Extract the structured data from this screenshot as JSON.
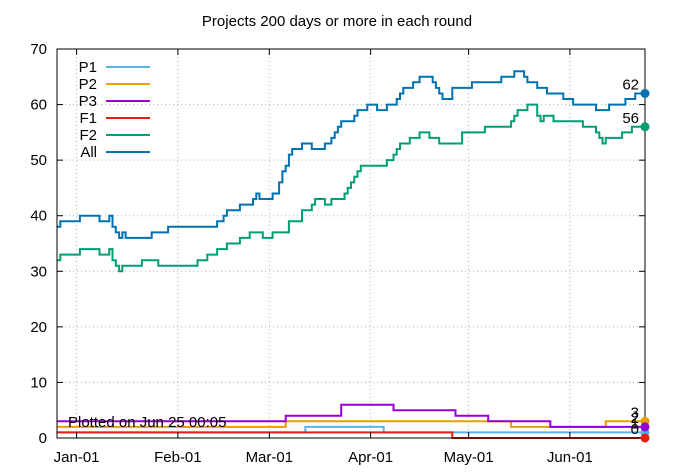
{
  "chart_data": {
    "type": "line",
    "title": "Projects 200 days or more in each round",
    "xlabel": "",
    "ylabel": "",
    "ylim": [
      0,
      70
    ],
    "yticks": [
      0,
      10,
      20,
      30,
      40,
      50,
      60,
      70
    ],
    "x_start": "2020-12-26",
    "x_end": "2021-06-24",
    "xticks": [
      {
        "date": "2021-01-01",
        "label": "Jan-01"
      },
      {
        "date": "2021-02-01",
        "label": "Feb-01"
      },
      {
        "date": "2021-03-01",
        "label": "Mar-01"
      },
      {
        "date": "2021-04-01",
        "label": "Apr-01"
      },
      {
        "date": "2021-05-01",
        "label": "May-01"
      },
      {
        "date": "2021-06-01",
        "label": "Jun-01"
      }
    ],
    "grid": true,
    "legend_position": "top-left",
    "note": "Plotted on Jun 25 00:05",
    "series": [
      {
        "name": "P1",
        "color": "#56b4e9",
        "end_label": "1",
        "points": [
          [
            "2020-12-26",
            1
          ],
          [
            "2021-03-11",
            1
          ],
          [
            "2021-03-12",
            2
          ],
          [
            "2021-04-05",
            1
          ],
          [
            "2021-06-24",
            1
          ]
        ]
      },
      {
        "name": "P2",
        "color": "#e69f00",
        "end_label": "3",
        "points": [
          [
            "2020-12-26",
            2
          ],
          [
            "2021-03-01",
            2
          ],
          [
            "2021-03-06",
            3
          ],
          [
            "2021-05-13",
            3
          ],
          [
            "2021-05-14",
            2
          ],
          [
            "2021-06-11",
            2
          ],
          [
            "2021-06-12",
            3
          ],
          [
            "2021-06-24",
            3
          ]
        ]
      },
      {
        "name": "P3",
        "color": "#9400d3",
        "end_label": "2",
        "points": [
          [
            "2020-12-26",
            3
          ],
          [
            "2021-03-05",
            3
          ],
          [
            "2021-03-06",
            4
          ],
          [
            "2021-03-22",
            4
          ],
          [
            "2021-03-23",
            6
          ],
          [
            "2021-04-07",
            6
          ],
          [
            "2021-04-08",
            5
          ],
          [
            "2021-04-26",
            5
          ],
          [
            "2021-04-27",
            4
          ],
          [
            "2021-05-06",
            4
          ],
          [
            "2021-05-07",
            3
          ],
          [
            "2021-05-25",
            3
          ],
          [
            "2021-05-26",
            2
          ],
          [
            "2021-06-24",
            2
          ]
        ]
      },
      {
        "name": "F1",
        "color": "#e51e10",
        "end_label": "0",
        "points": [
          [
            "2020-12-26",
            1
          ],
          [
            "2021-04-25",
            1
          ],
          [
            "2021-04-26",
            0
          ],
          [
            "2021-06-24",
            0
          ]
        ]
      },
      {
        "name": "F2",
        "color": "#009e73",
        "end_label": "56",
        "points": [
          [
            "2020-12-26",
            32
          ],
          [
            "2020-12-27",
            33
          ],
          [
            "2021-01-01",
            33
          ],
          [
            "2021-01-02",
            34
          ],
          [
            "2021-01-07",
            34
          ],
          [
            "2021-01-08",
            33
          ],
          [
            "2021-01-10",
            33
          ],
          [
            "2021-01-11",
            34
          ],
          [
            "2021-01-12",
            32
          ],
          [
            "2021-01-13",
            31
          ],
          [
            "2021-01-14",
            30
          ],
          [
            "2021-01-15",
            31
          ],
          [
            "2021-01-20",
            31
          ],
          [
            "2021-01-21",
            32
          ],
          [
            "2021-01-25",
            32
          ],
          [
            "2021-01-26",
            31
          ],
          [
            "2021-02-06",
            31
          ],
          [
            "2021-02-07",
            32
          ],
          [
            "2021-02-09",
            32
          ],
          [
            "2021-02-10",
            33
          ],
          [
            "2021-02-12",
            33
          ],
          [
            "2021-02-13",
            34
          ],
          [
            "2021-02-15",
            34
          ],
          [
            "2021-02-16",
            35
          ],
          [
            "2021-02-19",
            35
          ],
          [
            "2021-02-20",
            36
          ],
          [
            "2021-02-22",
            36
          ],
          [
            "2021-02-23",
            37
          ],
          [
            "2021-02-26",
            37
          ],
          [
            "2021-02-27",
            36
          ],
          [
            "2021-03-01",
            36
          ],
          [
            "2021-03-02",
            37
          ],
          [
            "2021-03-06",
            37
          ],
          [
            "2021-03-07",
            39
          ],
          [
            "2021-03-10",
            39
          ],
          [
            "2021-03-11",
            41
          ],
          [
            "2021-03-13",
            41
          ],
          [
            "2021-03-14",
            42
          ],
          [
            "2021-03-15",
            43
          ],
          [
            "2021-03-17",
            43
          ],
          [
            "2021-03-18",
            42
          ],
          [
            "2021-03-19",
            42
          ],
          [
            "2021-03-20",
            43
          ],
          [
            "2021-03-23",
            43
          ],
          [
            "2021-03-24",
            44
          ],
          [
            "2021-03-25",
            45
          ],
          [
            "2021-03-26",
            46
          ],
          [
            "2021-03-27",
            47
          ],
          [
            "2021-03-28",
            48
          ],
          [
            "2021-03-29",
            49
          ],
          [
            "2021-04-05",
            49
          ],
          [
            "2021-04-06",
            50
          ],
          [
            "2021-04-07",
            50
          ],
          [
            "2021-04-08",
            51
          ],
          [
            "2021-04-09",
            52
          ],
          [
            "2021-04-10",
            53
          ],
          [
            "2021-04-12",
            53
          ],
          [
            "2021-04-13",
            54
          ],
          [
            "2021-04-14",
            54
          ],
          [
            "2021-04-15",
            54
          ],
          [
            "2021-04-16",
            55
          ],
          [
            "2021-04-18",
            55
          ],
          [
            "2021-04-19",
            54
          ],
          [
            "2021-04-21",
            54
          ],
          [
            "2021-04-22",
            53
          ],
          [
            "2021-04-28",
            53
          ],
          [
            "2021-04-29",
            55
          ],
          [
            "2021-05-05",
            55
          ],
          [
            "2021-05-06",
            56
          ],
          [
            "2021-05-13",
            56
          ],
          [
            "2021-05-14",
            57
          ],
          [
            "2021-05-15",
            58
          ],
          [
            "2021-05-16",
            59
          ],
          [
            "2021-05-18",
            59
          ],
          [
            "2021-05-19",
            60
          ],
          [
            "2021-05-21",
            60
          ],
          [
            "2021-05-22",
            58
          ],
          [
            "2021-05-23",
            57
          ],
          [
            "2021-05-24",
            58
          ],
          [
            "2021-05-26",
            58
          ],
          [
            "2021-05-27",
            57
          ],
          [
            "2021-06-04",
            57
          ],
          [
            "2021-06-05",
            56
          ],
          [
            "2021-06-08",
            56
          ],
          [
            "2021-06-09",
            55
          ],
          [
            "2021-06-10",
            54
          ],
          [
            "2021-06-11",
            53
          ],
          [
            "2021-06-12",
            54
          ],
          [
            "2021-06-16",
            54
          ],
          [
            "2021-06-17",
            55
          ],
          [
            "2021-06-19",
            55
          ],
          [
            "2021-06-20",
            56
          ],
          [
            "2021-06-24",
            56
          ]
        ]
      },
      {
        "name": "All",
        "color": "#0072b2",
        "end_label": "62",
        "points": [
          [
            "2020-12-26",
            38
          ],
          [
            "2020-12-27",
            39
          ],
          [
            "2021-01-01",
            39
          ],
          [
            "2021-01-02",
            40
          ],
          [
            "2021-01-07",
            40
          ],
          [
            "2021-01-08",
            39
          ],
          [
            "2021-01-10",
            39
          ],
          [
            "2021-01-11",
            40
          ],
          [
            "2021-01-12",
            38
          ],
          [
            "2021-01-13",
            37
          ],
          [
            "2021-01-14",
            36
          ],
          [
            "2021-01-15",
            37
          ],
          [
            "2021-01-16",
            36
          ],
          [
            "2021-01-23",
            36
          ],
          [
            "2021-01-24",
            37
          ],
          [
            "2021-01-28",
            37
          ],
          [
            "2021-01-29",
            38
          ],
          [
            "2021-02-12",
            38
          ],
          [
            "2021-02-13",
            39
          ],
          [
            "2021-02-15",
            40
          ],
          [
            "2021-02-16",
            41
          ],
          [
            "2021-02-19",
            41
          ],
          [
            "2021-02-20",
            42
          ],
          [
            "2021-02-23",
            42
          ],
          [
            "2021-02-24",
            43
          ],
          [
            "2021-02-25",
            44
          ],
          [
            "2021-02-26",
            43
          ],
          [
            "2021-03-01",
            43
          ],
          [
            "2021-03-02",
            44
          ],
          [
            "2021-03-04",
            46
          ],
          [
            "2021-03-05",
            48
          ],
          [
            "2021-03-06",
            49
          ],
          [
            "2021-03-07",
            51
          ],
          [
            "2021-03-08",
            52
          ],
          [
            "2021-03-10",
            52
          ],
          [
            "2021-03-11",
            53
          ],
          [
            "2021-03-13",
            53
          ],
          [
            "2021-03-14",
            52
          ],
          [
            "2021-03-17",
            52
          ],
          [
            "2021-03-18",
            53
          ],
          [
            "2021-03-20",
            54
          ],
          [
            "2021-03-21",
            55
          ],
          [
            "2021-03-22",
            56
          ],
          [
            "2021-03-23",
            57
          ],
          [
            "2021-03-26",
            57
          ],
          [
            "2021-03-27",
            58
          ],
          [
            "2021-03-28",
            59
          ],
          [
            "2021-03-30",
            59
          ],
          [
            "2021-03-31",
            60
          ],
          [
            "2021-04-02",
            60
          ],
          [
            "2021-04-03",
            59
          ],
          [
            "2021-04-05",
            59
          ],
          [
            "2021-04-06",
            60
          ],
          [
            "2021-04-08",
            60
          ],
          [
            "2021-04-09",
            61
          ],
          [
            "2021-04-10",
            62
          ],
          [
            "2021-04-11",
            63
          ],
          [
            "2021-04-13",
            63
          ],
          [
            "2021-04-14",
            64
          ],
          [
            "2021-04-16",
            65
          ],
          [
            "2021-04-19",
            65
          ],
          [
            "2021-04-20",
            64
          ],
          [
            "2021-04-21",
            63
          ],
          [
            "2021-04-22",
            62
          ],
          [
            "2021-04-23",
            61
          ],
          [
            "2021-04-25",
            61
          ],
          [
            "2021-04-26",
            63
          ],
          [
            "2021-05-01",
            63
          ],
          [
            "2021-05-02",
            64
          ],
          [
            "2021-05-10",
            64
          ],
          [
            "2021-05-11",
            65
          ],
          [
            "2021-05-14",
            65
          ],
          [
            "2021-05-15",
            66
          ],
          [
            "2021-05-17",
            66
          ],
          [
            "2021-05-18",
            65
          ],
          [
            "2021-05-19",
            64
          ],
          [
            "2021-05-21",
            64
          ],
          [
            "2021-05-22",
            63
          ],
          [
            "2021-05-24",
            63
          ],
          [
            "2021-05-25",
            62
          ],
          [
            "2021-05-29",
            62
          ],
          [
            "2021-05-30",
            61
          ],
          [
            "2021-06-01",
            61
          ],
          [
            "2021-06-02",
            60
          ],
          [
            "2021-06-08",
            60
          ],
          [
            "2021-06-09",
            59
          ],
          [
            "2021-06-12",
            59
          ],
          [
            "2021-06-13",
            60
          ],
          [
            "2021-06-17",
            60
          ],
          [
            "2021-06-18",
            61
          ],
          [
            "2021-06-20",
            61
          ],
          [
            "2021-06-21",
            62
          ],
          [
            "2021-06-24",
            62
          ]
        ]
      }
    ]
  }
}
